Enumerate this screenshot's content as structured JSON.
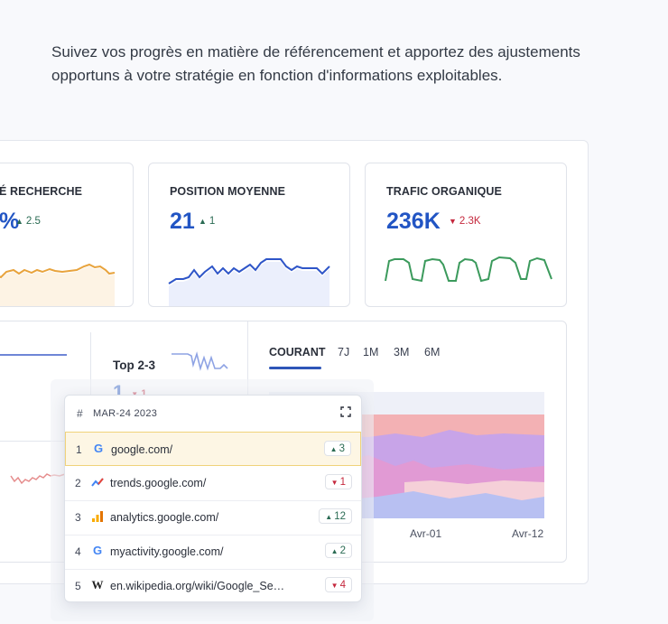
{
  "intro_text": "Suivez vos progrès en matière de référencement et apportez des ajustements opportuns à votre stratégie en fonction d'informations exploitables.",
  "cards": [
    {
      "label": "É RECHERCHE",
      "value": "%",
      "delta": "2.5",
      "direction": "up",
      "color": "#e8a33c"
    },
    {
      "label": "POSITION MOYENNE",
      "value": "21",
      "delta": "1",
      "direction": "up",
      "color": "#2e55c8"
    },
    {
      "label": "TRAFIC ORGANIQUE",
      "value": "236K",
      "delta": "2.3K",
      "direction": "down",
      "color": "#3b9a5c"
    }
  ],
  "top23": {
    "label": "Top 2-3",
    "value": "1",
    "delta": "1",
    "direction": "down"
  },
  "tabs": [
    {
      "label": "COURANT",
      "active": true
    },
    {
      "label": "7J",
      "active": false
    },
    {
      "label": "1M",
      "active": false
    },
    {
      "label": "3M",
      "active": false
    },
    {
      "label": "6M",
      "active": false
    }
  ],
  "xaxis": [
    "Avr-01",
    "Avr-12"
  ],
  "popup": {
    "hash": "#",
    "date": "MAR-24 2023",
    "rows": [
      {
        "rank": "1",
        "icon": "google-icon",
        "site": "google.com/",
        "change": "3",
        "direction": "up"
      },
      {
        "rank": "2",
        "icon": "trends-icon",
        "site": "trends.google.com/",
        "change": "1",
        "direction": "down"
      },
      {
        "rank": "3",
        "icon": "analytics-icon",
        "site": "analytics.google.com/",
        "change": "12",
        "direction": "up"
      },
      {
        "rank": "4",
        "icon": "google-icon",
        "site": "myactivity.google.com/",
        "change": "2",
        "direction": "up"
      },
      {
        "rank": "5",
        "icon": "wikipedia-icon",
        "site": "en.wikipedia.org/wiki/Google_Se…",
        "change": "4",
        "direction": "down"
      }
    ]
  },
  "colors": {
    "accent": "#2255c4",
    "up": "#2a6b53",
    "down": "#c5283d",
    "highlight_bg": "#fdf6e4"
  }
}
